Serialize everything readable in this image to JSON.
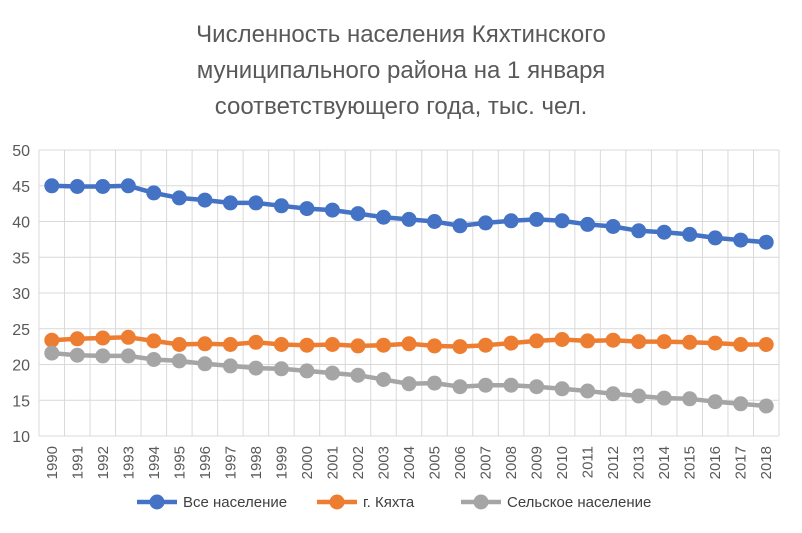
{
  "chart_data": {
    "type": "line",
    "title_lines": [
      "Численность населения Кяхтинского",
      "муниципального района на 1 января",
      "соответствующего года, тыс. чел."
    ],
    "x": [
      "1990",
      "1991",
      "1992",
      "1993",
      "1994",
      "1995",
      "1996",
      "1997",
      "1998",
      "1999",
      "2000",
      "2001",
      "2002",
      "2003",
      "2004",
      "2005",
      "2006",
      "2007",
      "2008",
      "2009",
      "2010",
      "2011",
      "2012",
      "2013",
      "2014",
      "2015",
      "2016",
      "2017",
      "2018"
    ],
    "ylim": [
      10,
      50
    ],
    "yticks": [
      "10",
      "15",
      "20",
      "25",
      "30",
      "35",
      "40",
      "45",
      "50"
    ],
    "grid": true,
    "legend_position": "bottom",
    "series": [
      {
        "name": "Все население",
        "color": "#4472c4",
        "values": [
          45.0,
          44.9,
          44.9,
          45.0,
          44.0,
          43.3,
          43.0,
          42.6,
          42.6,
          42.2,
          41.8,
          41.6,
          41.1,
          40.6,
          40.3,
          40.0,
          39.4,
          39.8,
          40.1,
          40.3,
          40.1,
          39.6,
          39.3,
          38.7,
          38.5,
          38.2,
          37.7,
          37.4,
          37.1
        ]
      },
      {
        "name": "г. Кяхта",
        "color": "#ed7d31",
        "values": [
          23.4,
          23.6,
          23.7,
          23.8,
          23.3,
          22.8,
          22.9,
          22.8,
          23.1,
          22.8,
          22.7,
          22.8,
          22.6,
          22.7,
          22.9,
          22.6,
          22.5,
          22.7,
          23.0,
          23.3,
          23.5,
          23.3,
          23.4,
          23.2,
          23.2,
          23.1,
          23.0,
          22.8,
          22.8
        ]
      },
      {
        "name": "Сельское население",
        "color": "#a5a5a5",
        "values": [
          21.6,
          21.3,
          21.2,
          21.2,
          20.7,
          20.5,
          20.1,
          19.8,
          19.5,
          19.4,
          19.1,
          18.8,
          18.5,
          17.9,
          17.3,
          17.4,
          16.9,
          17.1,
          17.1,
          16.9,
          16.6,
          16.3,
          15.9,
          15.6,
          15.3,
          15.2,
          14.8,
          14.5,
          14.2
        ]
      }
    ]
  }
}
